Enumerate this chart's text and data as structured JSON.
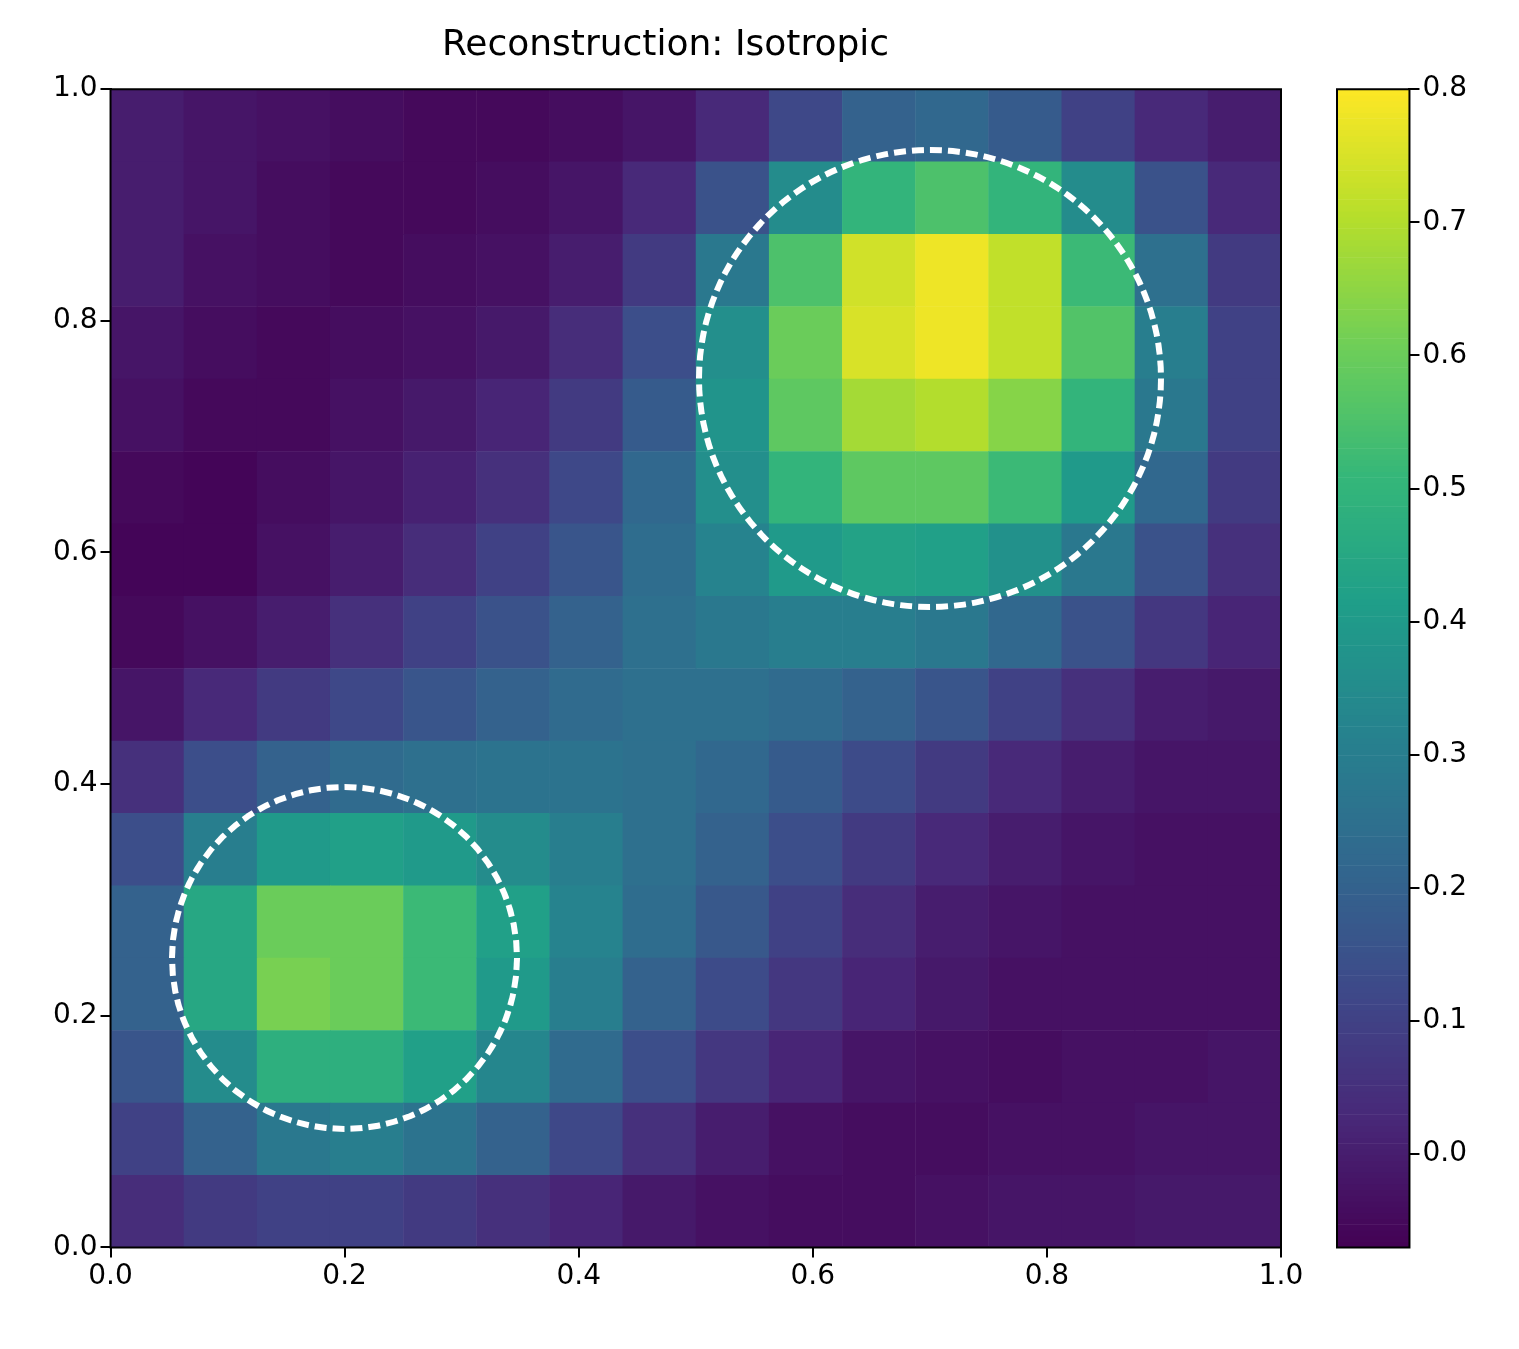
{
  "chart_data": {
    "type": "heatmap",
    "title": "Reconstruction: Isotropic",
    "xlim": [
      0,
      1
    ],
    "ylim": [
      0,
      1
    ],
    "xticks": [
      {
        "value": 0,
        "label": "0.0"
      },
      {
        "value": 0.2,
        "label": "0.2"
      },
      {
        "value": 0.4,
        "label": "0.4"
      },
      {
        "value": 0.6,
        "label": "0.6"
      },
      {
        "value": 0.8,
        "label": "0.8"
      },
      {
        "value": 1,
        "label": "1.0"
      }
    ],
    "yticks": [
      {
        "value": 0,
        "label": "0.0"
      },
      {
        "value": 0.2,
        "label": "0.2"
      },
      {
        "value": 0.4,
        "label": "0.4"
      },
      {
        "value": 0.6,
        "label": "0.6"
      },
      {
        "value": 0.8,
        "label": "0.8"
      },
      {
        "value": 1,
        "label": "1.0"
      }
    ],
    "clim": [
      -0.07,
      0.8
    ],
    "cticks": [
      {
        "value": 0,
        "label": "0.0"
      },
      0.1,
      0.2,
      0.3,
      0.4,
      0.5,
      0.6,
      0.7,
      0.8
    ],
    "cells": [
      [
        0.0,
        -0.02,
        -0.03,
        -0.04,
        -0.05,
        -0.05,
        -0.04,
        -0.02,
        0.03,
        0.12,
        0.2,
        0.22,
        0.18,
        0.1,
        0.03,
        0.0
      ],
      [
        0.0,
        -0.02,
        -0.04,
        -0.05,
        -0.05,
        -0.04,
        -0.02,
        0.03,
        0.15,
        0.35,
        0.5,
        0.55,
        0.5,
        0.35,
        0.15,
        0.03
      ],
      [
        0.0,
        -0.03,
        -0.04,
        -0.05,
        -0.04,
        -0.03,
        0.0,
        0.08,
        0.28,
        0.55,
        0.74,
        0.78,
        0.72,
        0.52,
        0.25,
        0.08
      ],
      [
        -0.02,
        -0.04,
        -0.05,
        -0.04,
        -0.03,
        -0.01,
        0.04,
        0.14,
        0.36,
        0.6,
        0.75,
        0.78,
        0.72,
        0.56,
        0.3,
        0.1
      ],
      [
        -0.03,
        -0.05,
        -0.05,
        -0.03,
        -0.01,
        0.02,
        0.08,
        0.18,
        0.38,
        0.58,
        0.68,
        0.7,
        0.64,
        0.5,
        0.28,
        0.1
      ],
      [
        -0.05,
        -0.06,
        -0.04,
        -0.02,
        0.01,
        0.05,
        0.12,
        0.22,
        0.36,
        0.5,
        0.58,
        0.58,
        0.52,
        0.4,
        0.22,
        0.08
      ],
      [
        -0.06,
        -0.06,
        -0.03,
        0.0,
        0.04,
        0.1,
        0.16,
        0.24,
        0.32,
        0.4,
        0.43,
        0.42,
        0.37,
        0.28,
        0.15,
        0.05
      ],
      [
        -0.05,
        -0.03,
        0.0,
        0.05,
        0.1,
        0.15,
        0.2,
        0.25,
        0.28,
        0.3,
        0.3,
        0.28,
        0.22,
        0.15,
        0.07,
        0.02
      ],
      [
        -0.02,
        0.03,
        0.08,
        0.12,
        0.16,
        0.2,
        0.23,
        0.25,
        0.25,
        0.23,
        0.2,
        0.16,
        0.1,
        0.05,
        0.0,
        -0.01
      ],
      [
        0.05,
        0.14,
        0.2,
        0.23,
        0.25,
        0.26,
        0.26,
        0.25,
        0.22,
        0.18,
        0.13,
        0.08,
        0.03,
        0.0,
        -0.02,
        -0.02
      ],
      [
        0.14,
        0.3,
        0.4,
        0.42,
        0.4,
        0.35,
        0.3,
        0.25,
        0.2,
        0.14,
        0.08,
        0.03,
        0.0,
        -0.02,
        -0.03,
        -0.03
      ],
      [
        0.2,
        0.45,
        0.6,
        0.6,
        0.52,
        0.42,
        0.32,
        0.24,
        0.17,
        0.1,
        0.04,
        0.0,
        -0.02,
        -0.03,
        -0.03,
        -0.03
      ],
      [
        0.2,
        0.45,
        0.62,
        0.6,
        0.52,
        0.4,
        0.3,
        0.2,
        0.13,
        0.07,
        0.02,
        -0.01,
        -0.03,
        -0.03,
        -0.03,
        -0.03
      ],
      [
        0.16,
        0.35,
        0.48,
        0.48,
        0.42,
        0.33,
        0.23,
        0.14,
        0.07,
        0.02,
        -0.02,
        -0.03,
        -0.04,
        -0.03,
        -0.03,
        -0.02
      ],
      [
        0.1,
        0.2,
        0.28,
        0.3,
        0.26,
        0.2,
        0.12,
        0.05,
        0.0,
        -0.03,
        -0.04,
        -0.04,
        -0.03,
        -0.03,
        -0.02,
        -0.02
      ],
      [
        0.04,
        0.08,
        0.1,
        0.1,
        0.08,
        0.05,
        0.02,
        -0.01,
        -0.03,
        -0.04,
        -0.04,
        -0.03,
        -0.02,
        -0.02,
        -0.01,
        -0.01
      ]
    ]
  }
}
